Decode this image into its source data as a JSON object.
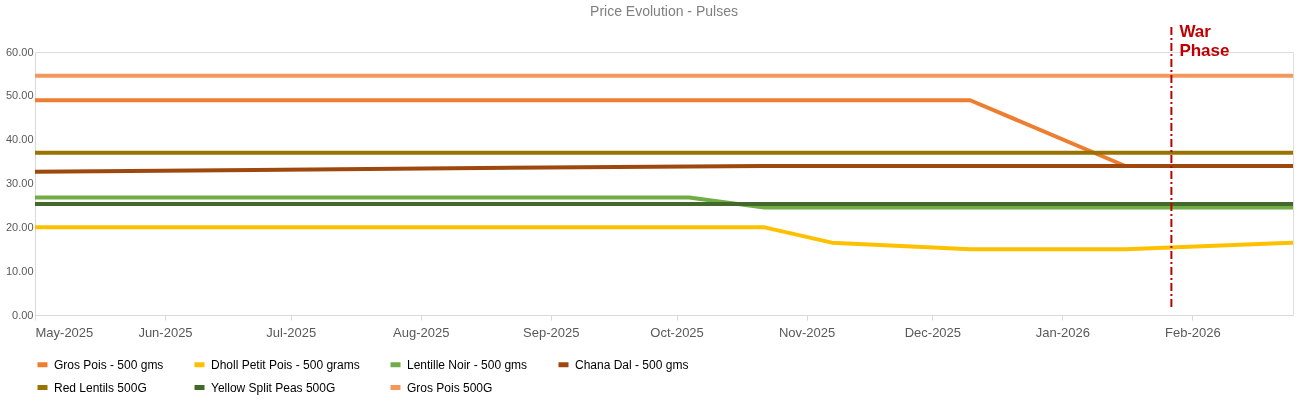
{
  "chart_data": {
    "type": "line",
    "title": "Price Evolution - Pulses",
    "xlim": [
      "2025-05-01",
      "2026-02-25"
    ],
    "xticks": [
      {
        "value": "2025-05-01",
        "label": "May-2025"
      },
      {
        "value": "2025-06-01",
        "label": "Jun-2025"
      },
      {
        "value": "2025-07-01",
        "label": "Jul-2025"
      },
      {
        "value": "2025-08-01",
        "label": "Aug-2025"
      },
      {
        "value": "2025-09-01",
        "label": "Sep-2025"
      },
      {
        "value": "2025-10-01",
        "label": "Oct-2025"
      },
      {
        "value": "2025-11-01",
        "label": "Nov-2025"
      },
      {
        "value": "2025-12-01",
        "label": "Dec-2025"
      },
      {
        "value": "2026-01-01",
        "label": "Jan-2026"
      },
      {
        "value": "2026-02-01",
        "label": "Feb-2026"
      }
    ],
    "ylim": [
      0,
      60
    ],
    "yticks": [
      {
        "value": 0,
        "label": "0.00"
      },
      {
        "value": 10,
        "label": "10.00"
      },
      {
        "value": 20,
        "label": "20.00"
      },
      {
        "value": 30,
        "label": "30.00"
      },
      {
        "value": 40,
        "label": "40.00"
      },
      {
        "value": 50,
        "label": "50.00"
      },
      {
        "value": 60,
        "label": "60.00"
      }
    ],
    "legend": "bottom",
    "marker": "none",
    "line_style": "solid",
    "ref_lines": [
      {
        "axis": "x",
        "value": "2026-01-27",
        "label": "War Phase",
        "color": "#c00000",
        "line_style": "dashdot"
      }
    ],
    "series": [
      {
        "name": "Gros Pois - 500 gms",
        "color": "#ed7d31",
        "x": [
          "2025-05-01",
          "2025-12-10",
          "2026-01-16",
          "2026-02-25"
        ],
        "values": [
          49,
          49,
          34,
          34
        ]
      },
      {
        "name": "Dholl Petit Pois - 500 grams",
        "color": "#ffc000",
        "x": [
          "2025-05-01",
          "2025-10-22",
          "2025-11-07",
          "2025-12-10",
          "2026-01-16",
          "2026-02-25"
        ],
        "values": [
          20,
          20,
          16.5,
          15,
          15,
          16.5
        ]
      },
      {
        "name": "Lentille Noir - 500 gms",
        "color": "#70ad47",
        "x": [
          "2025-05-01",
          "2025-10-04",
          "2025-10-22",
          "2026-02-25"
        ],
        "values": [
          26.8,
          26.8,
          24.5,
          24.5
        ]
      },
      {
        "name": "Chana Dal - 500 gms",
        "color": "#9e480e",
        "x": [
          "2025-05-01",
          "2025-10-04",
          "2025-10-22",
          "2026-02-25"
        ],
        "values": [
          32.7,
          33.9,
          34,
          34
        ]
      },
      {
        "name": "Red Lentils 500G",
        "color": "#997300",
        "x": [
          "2025-05-01",
          "2026-02-25"
        ],
        "values": [
          37,
          37
        ]
      },
      {
        "name": "Yellow Split Peas 500G",
        "color": "#43682b",
        "x": [
          "2025-05-01",
          "2026-02-25"
        ],
        "values": [
          25.3,
          25.3
        ]
      },
      {
        "name": "Gros Pois 500G",
        "color": "#f4975c",
        "x": [
          "2025-05-01",
          "2026-02-25"
        ],
        "values": [
          54.6,
          54.6
        ]
      }
    ]
  }
}
